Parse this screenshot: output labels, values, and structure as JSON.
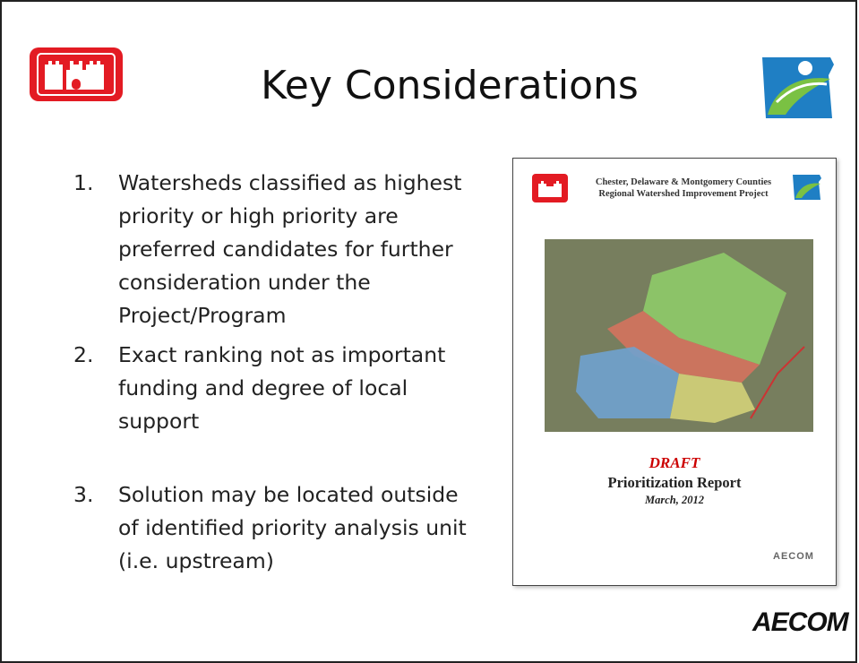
{
  "header": {
    "title": "Key Considerations"
  },
  "items": [
    {
      "number": "1.",
      "text": "Watersheds classified as highest priority or high priority are preferred candidates for further consideration under the Project/Program"
    },
    {
      "number": "2.",
      "text": "Exact ranking not as important funding and degree of local support"
    },
    {
      "number": "3.",
      "text": "Solution may be located outside of identified priority analysis unit (i.e. upstream)"
    }
  ],
  "report": {
    "header_line1": "Chester, Delaware & Montgomery Counties",
    "header_line2": "Regional Watershed Improvement Project",
    "status": "DRAFT",
    "title": "Prioritization Report",
    "date": "March, 2012",
    "logo": "AECOM"
  },
  "footer": {
    "logo": "AECOM"
  }
}
